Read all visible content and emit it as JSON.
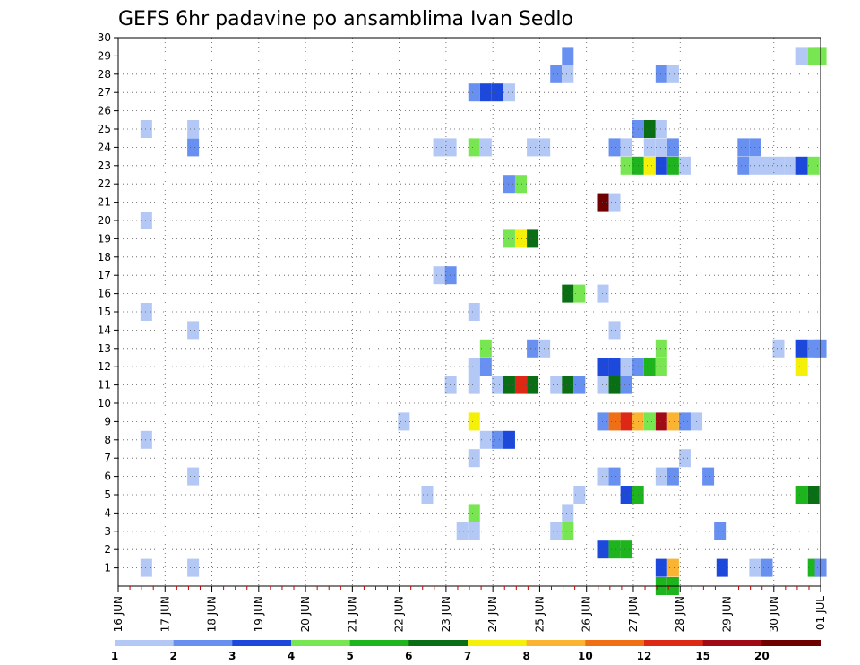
{
  "chart_data": {
    "type": "heatmap",
    "title": "GEFS 6hr padavine po ansamblima Ivan Sedlo",
    "x_tick_labels": [
      "16 JUN",
      "17 JUN",
      "18 JUN",
      "19 JUN",
      "20 JUN",
      "21 JUN",
      "22 JUN",
      "23 JUN",
      "24 JUN",
      "25 JUN",
      "26 JUN",
      "27 JUN",
      "28 JUN",
      "29 JUN",
      "30 JUN",
      "01 JUL"
    ],
    "y_tick_labels": [
      "1",
      "2",
      "3",
      "4",
      "5",
      "6",
      "7",
      "8",
      "9",
      "10",
      "11",
      "12",
      "13",
      "14",
      "15",
      "16",
      "17",
      "18",
      "19",
      "20",
      "21",
      "22",
      "23",
      "24",
      "25",
      "26",
      "27",
      "28",
      "29",
      "30"
    ],
    "grid": true,
    "colorbar": {
      "labels": [
        "1",
        "2",
        "3",
        "4",
        "5",
        "6",
        "7",
        "8",
        "10",
        "12",
        "15",
        "20"
      ],
      "colors": [
        "#b4c8f5",
        "#6890f0",
        "#1c48dc",
        "#78e650",
        "#1eb41e",
        "#0a6e14",
        "#f5f00a",
        "#fab432",
        "#f06e14",
        "#dc2814",
        "#a00a14",
        "#6e0000"
      ]
    },
    "cells": [
      [
        0.6,
        1,
        1
      ],
      [
        1.6,
        1,
        1
      ],
      [
        11.6,
        1,
        3
      ],
      [
        11.85,
        1,
        8
      ],
      [
        12.9,
        1,
        3
      ],
      [
        13.6,
        1,
        1
      ],
      [
        13.85,
        1,
        2
      ],
      [
        14.85,
        1,
        5
      ],
      [
        15.0,
        1,
        2
      ],
      [
        10.35,
        2,
        3
      ],
      [
        10.6,
        2,
        5
      ],
      [
        10.85,
        2,
        5
      ],
      [
        7.35,
        3,
        1
      ],
      [
        7.6,
        3,
        1
      ],
      [
        9.35,
        3,
        1
      ],
      [
        9.6,
        3,
        4
      ],
      [
        12.85,
        3,
        2
      ],
      [
        7.6,
        4,
        4
      ],
      [
        9.6,
        4,
        1
      ],
      [
        6.6,
        5,
        1
      ],
      [
        9.85,
        5,
        1
      ],
      [
        10.85,
        5,
        3
      ],
      [
        11.1,
        5,
        5
      ],
      [
        14.6,
        5,
        5
      ],
      [
        14.85,
        5,
        6
      ],
      [
        1.6,
        6,
        1
      ],
      [
        10.35,
        6,
        1
      ],
      [
        10.6,
        6,
        2
      ],
      [
        11.6,
        6,
        1
      ],
      [
        11.85,
        6,
        2
      ],
      [
        12.6,
        6,
        2
      ],
      [
        7.6,
        7,
        1
      ],
      [
        12.1,
        7,
        1
      ],
      [
        0.6,
        8,
        1
      ],
      [
        7.85,
        8,
        1
      ],
      [
        8.1,
        8,
        2
      ],
      [
        8.35,
        8,
        3
      ],
      [
        6.1,
        9,
        1
      ],
      [
        7.6,
        9,
        7
      ],
      [
        10.35,
        9,
        2
      ],
      [
        10.6,
        9,
        9
      ],
      [
        10.85,
        9,
        10
      ],
      [
        11.1,
        9,
        8
      ],
      [
        11.35,
        9,
        4
      ],
      [
        11.6,
        9,
        11
      ],
      [
        11.85,
        9,
        8
      ],
      [
        12.1,
        9,
        2
      ],
      [
        12.35,
        9,
        1
      ],
      [
        7.1,
        11,
        1
      ],
      [
        7.6,
        11,
        1
      ],
      [
        8.1,
        11,
        1
      ],
      [
        8.35,
        11,
        6
      ],
      [
        8.6,
        11,
        10
      ],
      [
        8.85,
        11,
        6
      ],
      [
        9.35,
        11,
        1
      ],
      [
        9.6,
        11,
        6
      ],
      [
        9.85,
        11,
        2
      ],
      [
        10.35,
        11,
        1
      ],
      [
        10.6,
        11,
        6
      ],
      [
        10.85,
        11,
        2
      ],
      [
        7.6,
        12,
        1
      ],
      [
        7.85,
        12,
        2
      ],
      [
        10.35,
        12,
        3
      ],
      [
        10.6,
        12,
        3
      ],
      [
        10.85,
        12,
        1
      ],
      [
        11.1,
        12,
        2
      ],
      [
        11.35,
        12,
        5
      ],
      [
        11.6,
        12,
        4
      ],
      [
        14.6,
        12,
        7
      ],
      [
        7.85,
        13,
        4
      ],
      [
        8.85,
        13,
        2
      ],
      [
        9.1,
        13,
        1
      ],
      [
        11.6,
        13,
        4
      ],
      [
        14.1,
        13,
        1
      ],
      [
        14.6,
        13,
        3
      ],
      [
        14.85,
        13,
        2
      ],
      [
        15.0,
        13,
        2
      ],
      [
        1.6,
        14,
        1
      ],
      [
        10.6,
        14,
        1
      ],
      [
        0.6,
        15,
        1
      ],
      [
        7.6,
        15,
        1
      ],
      [
        9.6,
        16,
        6
      ],
      [
        9.85,
        16,
        4
      ],
      [
        10.35,
        16,
        1
      ],
      [
        6.85,
        17,
        1
      ],
      [
        7.1,
        17,
        2
      ],
      [
        8.35,
        19,
        4
      ],
      [
        8.6,
        19,
        7
      ],
      [
        8.85,
        19,
        6
      ],
      [
        0.6,
        20,
        1
      ],
      [
        10.35,
        21,
        12
      ],
      [
        10.6,
        21,
        1
      ],
      [
        8.35,
        22,
        2
      ],
      [
        8.6,
        22,
        4
      ],
      [
        10.85,
        23,
        4
      ],
      [
        11.1,
        23,
        5
      ],
      [
        11.35,
        23,
        7
      ],
      [
        11.6,
        23,
        3
      ],
      [
        11.85,
        23,
        5
      ],
      [
        12.1,
        23,
        1
      ],
      [
        13.35,
        23,
        2
      ],
      [
        13.6,
        23,
        1
      ],
      [
        13.85,
        23,
        1
      ],
      [
        14.1,
        23,
        1
      ],
      [
        14.35,
        23,
        1
      ],
      [
        14.6,
        23,
        3
      ],
      [
        14.85,
        23,
        4
      ],
      [
        1.6,
        24,
        2
      ],
      [
        6.85,
        24,
        1
      ],
      [
        7.1,
        24,
        1
      ],
      [
        7.6,
        24,
        4
      ],
      [
        7.85,
        24,
        1
      ],
      [
        8.85,
        24,
        1
      ],
      [
        9.1,
        24,
        1
      ],
      [
        10.6,
        24,
        2
      ],
      [
        10.85,
        24,
        1
      ],
      [
        11.35,
        24,
        1
      ],
      [
        11.6,
        24,
        1
      ],
      [
        11.85,
        24,
        2
      ],
      [
        13.35,
        24,
        2
      ],
      [
        13.6,
        24,
        2
      ],
      [
        0.6,
        25,
        1
      ],
      [
        1.6,
        25,
        1
      ],
      [
        11.1,
        25,
        2
      ],
      [
        11.35,
        25,
        6
      ],
      [
        11.6,
        25,
        1
      ],
      [
        7.6,
        27,
        2
      ],
      [
        7.85,
        27,
        3
      ],
      [
        8.1,
        27,
        3
      ],
      [
        8.35,
        27,
        1
      ],
      [
        9.35,
        28,
        2
      ],
      [
        9.6,
        28,
        1
      ],
      [
        11.6,
        28,
        2
      ],
      [
        11.85,
        28,
        1
      ],
      [
        9.6,
        29,
        2
      ],
      [
        14.6,
        29,
        1
      ],
      [
        14.85,
        29,
        4
      ],
      [
        15.0,
        29,
        4
      ],
      [
        11.6,
        0,
        5
      ],
      [
        11.85,
        0,
        5
      ]
    ]
  }
}
